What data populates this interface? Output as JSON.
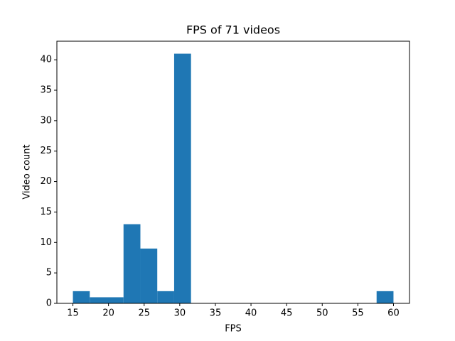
{
  "chart_data": {
    "type": "histogram",
    "title": "FPS of 71 videos",
    "x_label": "FPS",
    "y_label": "Video count",
    "bins": [
      15,
      17.368,
      19.737,
      22.105,
      24.474,
      26.842,
      29.211,
      31.579,
      33.947,
      36.316,
      38.684,
      41.053,
      43.421,
      45.789,
      48.158,
      50.526,
      52.895,
      55.263,
      57.632,
      60
    ],
    "counts": [
      2,
      1,
      1,
      13,
      9,
      2,
      41,
      0,
      0,
      0,
      0,
      0,
      0,
      0,
      0,
      0,
      0,
      0,
      2
    ],
    "color": "#1f77b4",
    "xlim": [
      12.75,
      62.25
    ],
    "xticks": [
      15,
      20,
      25,
      30,
      35,
      40,
      45,
      50,
      55,
      60
    ],
    "ylim": [
      0,
      43.05
    ],
    "yticks": [
      0,
      5,
      10,
      15,
      20,
      25,
      30,
      35,
      40
    ]
  }
}
